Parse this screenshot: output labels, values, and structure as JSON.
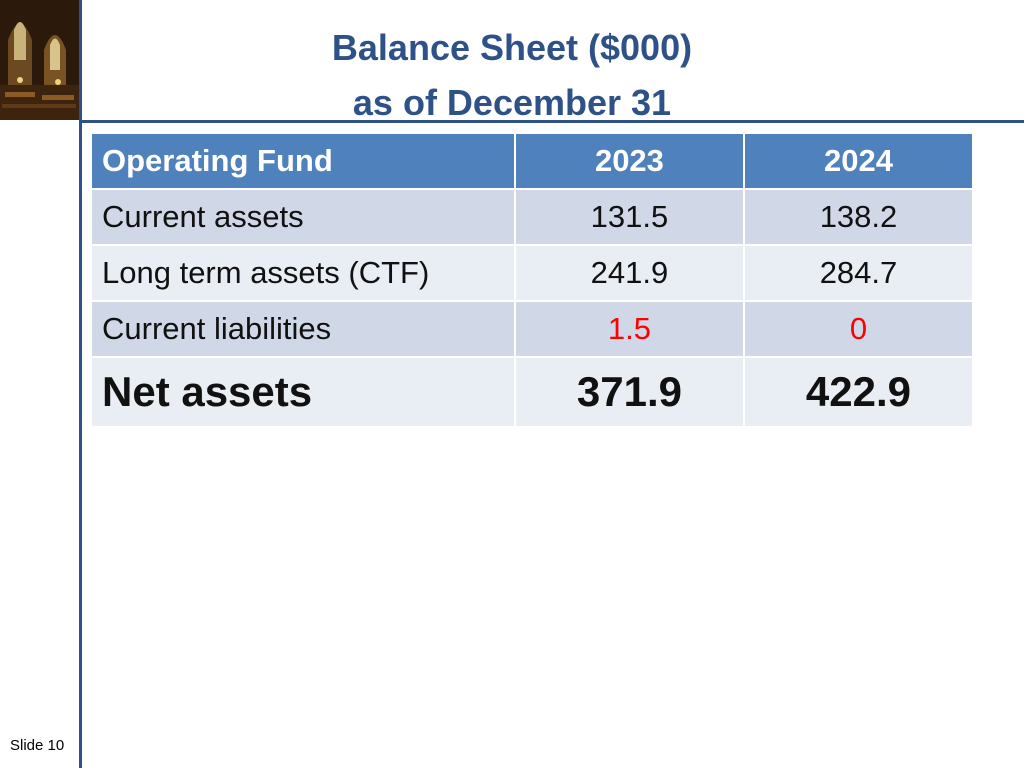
{
  "title": {
    "line1": "Balance Sheet ($000)",
    "line2": "as of December 31"
  },
  "table": {
    "headers": [
      "Operating Fund",
      "2023",
      "2024"
    ],
    "rows": [
      {
        "label": "Current assets",
        "y2023": "131.5",
        "y2024": "138.2"
      },
      {
        "label": "Long term assets (CTF)",
        "y2023": "241.9",
        "y2024": "284.7"
      },
      {
        "label": "Current liabilities",
        "y2023": "1.5",
        "y2024": "0"
      },
      {
        "label": "Net assets",
        "y2023": "371.9",
        "y2024": "422.9"
      }
    ]
  },
  "footer": {
    "slide_number": "Slide 10"
  },
  "colors": {
    "accent": "#2e5187",
    "header_fill": "#4f81bd",
    "row_dark": "#d0d8e8",
    "row_light": "#e9edf4",
    "negative": "#ff0000"
  }
}
